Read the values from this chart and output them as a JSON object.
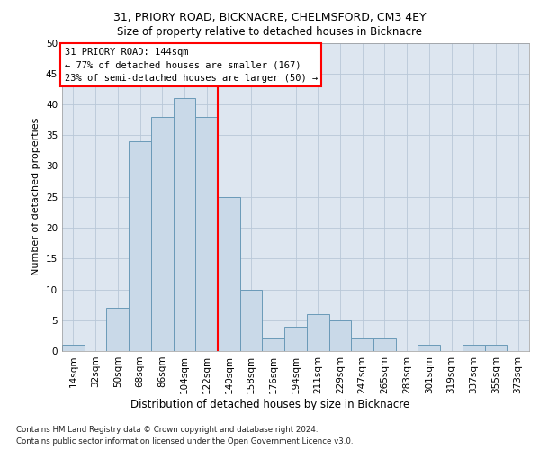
{
  "title1": "31, PRIORY ROAD, BICKNACRE, CHELMSFORD, CM3 4EY",
  "title2": "Size of property relative to detached houses in Bicknacre",
  "xlabel": "Distribution of detached houses by size in Bicknacre",
  "ylabel": "Number of detached properties",
  "footer1": "Contains HM Land Registry data © Crown copyright and database right 2024.",
  "footer2": "Contains public sector information licensed under the Open Government Licence v3.0.",
  "bin_labels": [
    "14sqm",
    "32sqm",
    "50sqm",
    "68sqm",
    "86sqm",
    "104sqm",
    "122sqm",
    "140sqm",
    "158sqm",
    "176sqm",
    "194sqm",
    "211sqm",
    "229sqm",
    "247sqm",
    "265sqm",
    "283sqm",
    "301sqm",
    "319sqm",
    "337sqm",
    "355sqm",
    "373sqm"
  ],
  "bar_values": [
    1,
    0,
    7,
    34,
    38,
    41,
    38,
    25,
    10,
    2,
    4,
    6,
    5,
    2,
    2,
    0,
    1,
    0,
    1,
    1,
    0
  ],
  "bar_color": "#c9d9e8",
  "bar_edge_color": "#6a9ab8",
  "vline_color": "red",
  "vline_pos": 6.5,
  "annotation_text": "31 PRIORY ROAD: 144sqm\n← 77% of detached houses are smaller (167)\n23% of semi-detached houses are larger (50) →",
  "annotation_box_color": "white",
  "annotation_box_edge": "red",
  "ylim": [
    0,
    50
  ],
  "yticks": [
    0,
    5,
    10,
    15,
    20,
    25,
    30,
    35,
    40,
    45,
    50
  ],
  "background_color": "#dde6f0",
  "grid_color": "#b8c8d8",
  "title1_fontsize": 9,
  "title2_fontsize": 8.5,
  "ylabel_fontsize": 8,
  "xlabel_fontsize": 8.5,
  "tick_fontsize": 7.5,
  "annot_fontsize": 7.5,
  "footer_fontsize": 6.2
}
